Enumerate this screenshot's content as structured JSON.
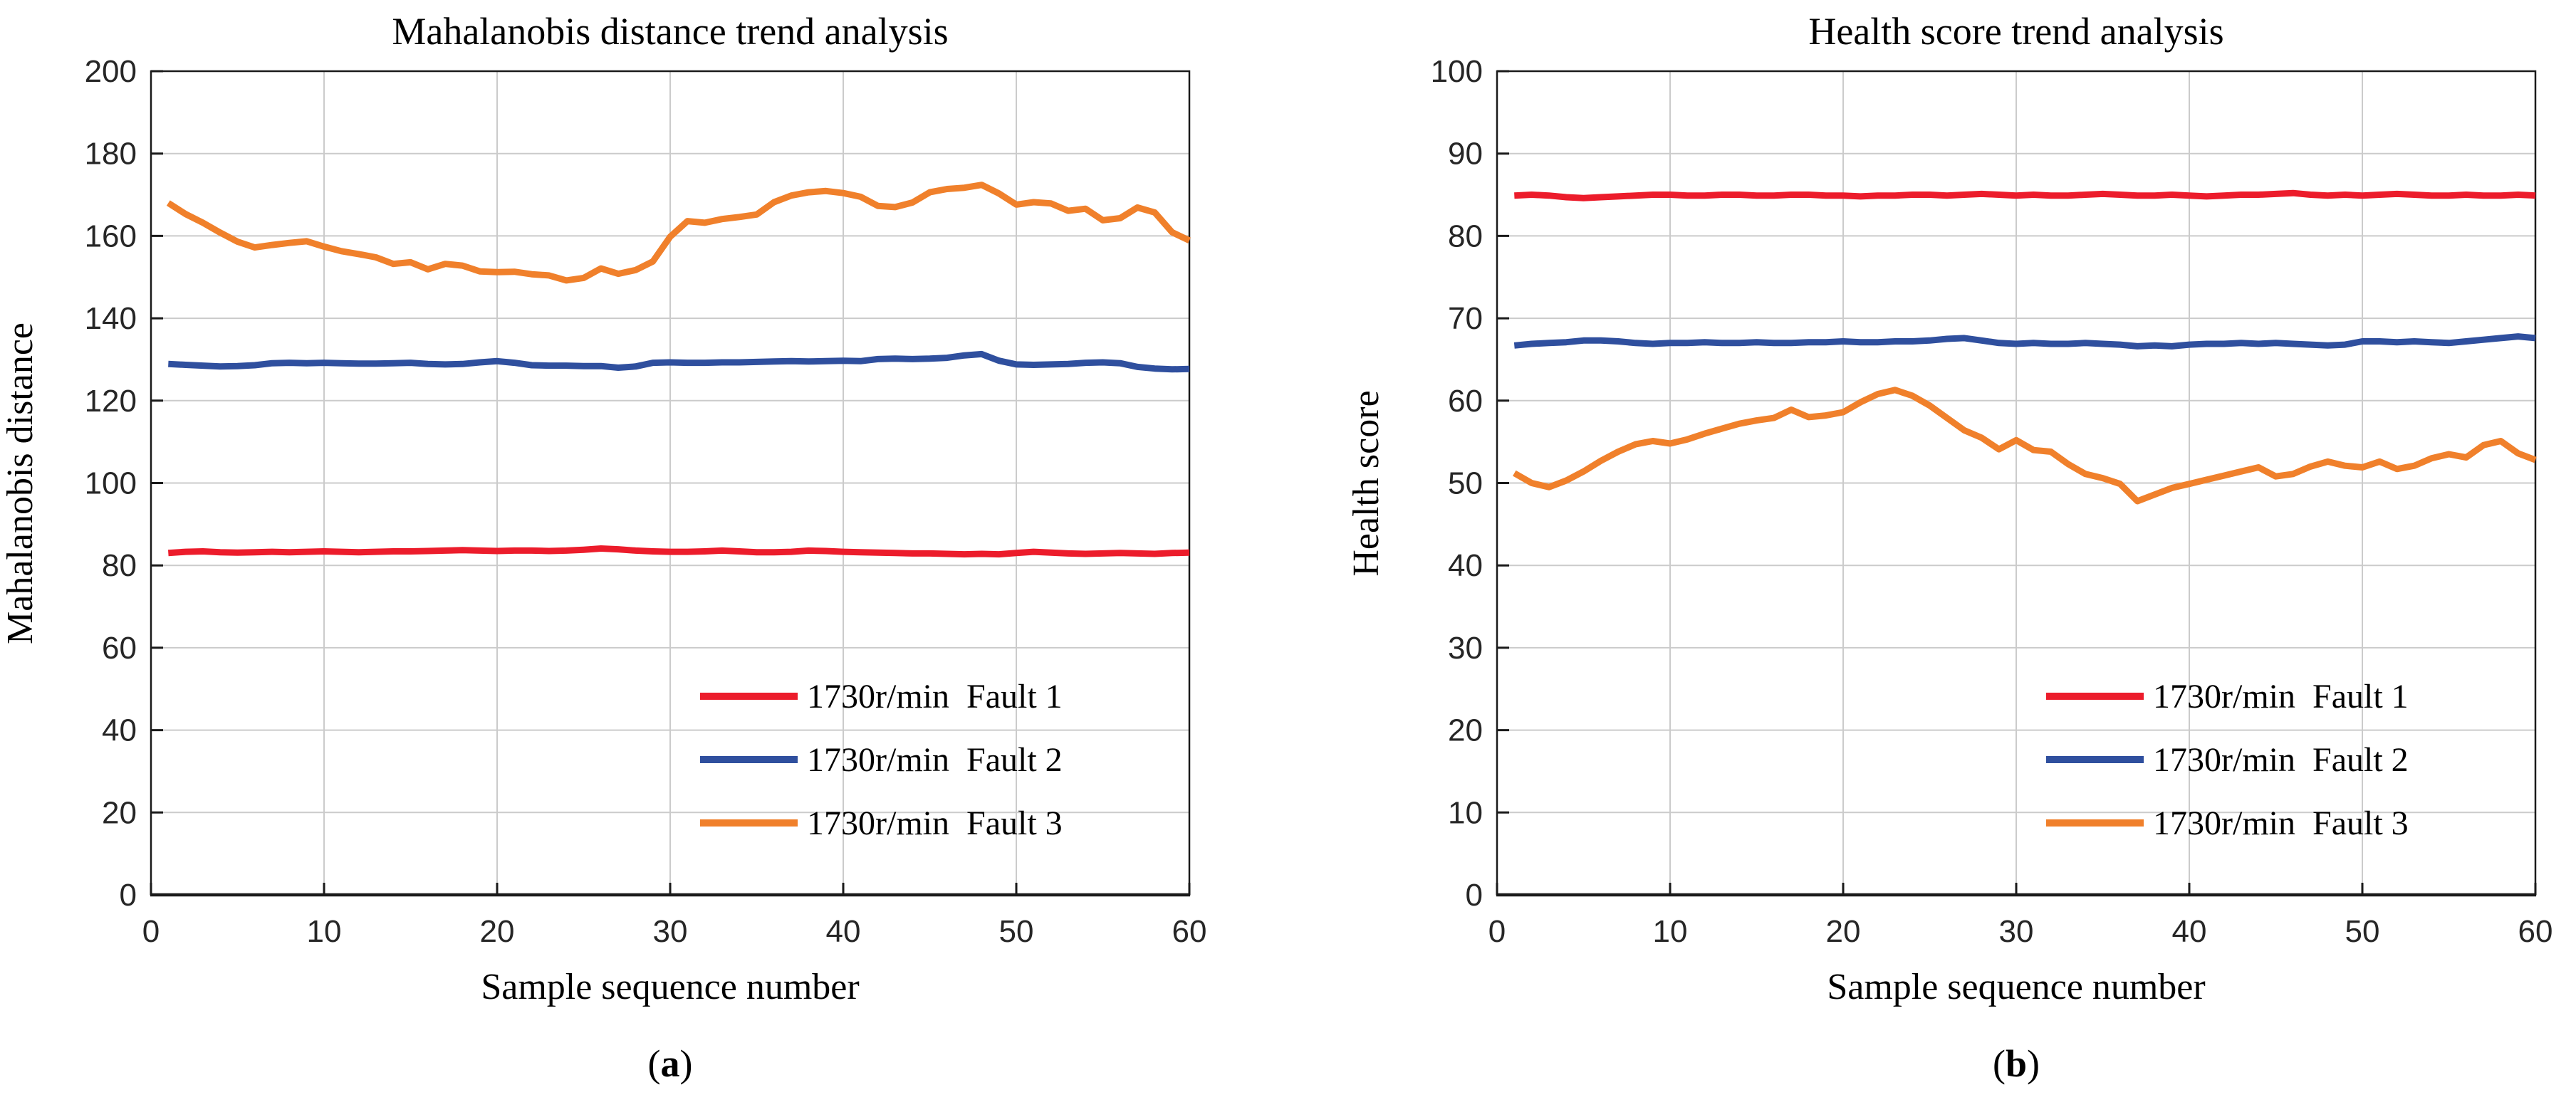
{
  "colors": {
    "background": "#FFFFFF",
    "grid": "#CBCBCB",
    "frame": "#1A1A1A",
    "tick_text": "#262626",
    "fault1_red": "#EC1C2B",
    "fault2_blue": "#2F4F9E",
    "fault3_orange": "#F0802B"
  },
  "chart_data": [
    {
      "id": "a",
      "type": "line",
      "title": "Mahalanobis distance trend analysis",
      "xlabel": "Sample sequence number",
      "ylabel": "Mahalanobis distance",
      "caption": {
        "open": "(",
        "letter": "a",
        "close": ")"
      },
      "xlim": [
        0,
        60
      ],
      "ylim": [
        0,
        200
      ],
      "xticks": [
        "0",
        "10",
        "20",
        "30",
        "40",
        "50",
        "60"
      ],
      "yticks": [
        "0",
        "20",
        "40",
        "60",
        "80",
        "100",
        "120",
        "140",
        "160",
        "180",
        "200"
      ],
      "grid": true,
      "legend_position": "lower right inside, no box",
      "x_start": 1,
      "x_step": 1,
      "series": [
        {
          "name": "1730r/min  Fault 1",
          "color": "#EC1C2B",
          "values": [
            83.0,
            83.3,
            83.4,
            83.2,
            83.1,
            83.2,
            83.3,
            83.2,
            83.3,
            83.4,
            83.3,
            83.2,
            83.3,
            83.4,
            83.4,
            83.5,
            83.6,
            83.7,
            83.6,
            83.5,
            83.6,
            83.6,
            83.5,
            83.6,
            83.8,
            84.1,
            83.9,
            83.6,
            83.4,
            83.3,
            83.3,
            83.4,
            83.6,
            83.4,
            83.2,
            83.2,
            83.3,
            83.6,
            83.5,
            83.3,
            83.2,
            83.1,
            83.0,
            82.9,
            82.9,
            82.8,
            82.7,
            82.8,
            82.7,
            83.0,
            83.3,
            83.1,
            82.9,
            82.8,
            82.9,
            83.0,
            82.9,
            82.8,
            83.0,
            83.1
          ]
        },
        {
          "name": "1730r/min  Fault 2",
          "color": "#2F4F9E",
          "values": [
            128.9,
            128.7,
            128.5,
            128.3,
            128.4,
            128.6,
            129.1,
            129.2,
            129.1,
            129.2,
            129.1,
            129.0,
            129.0,
            129.1,
            129.2,
            128.9,
            128.8,
            128.9,
            129.3,
            129.6,
            129.2,
            128.6,
            128.5,
            128.5,
            128.4,
            128.4,
            128.0,
            128.3,
            129.2,
            129.3,
            129.2,
            129.2,
            129.3,
            129.3,
            129.4,
            129.5,
            129.6,
            129.5,
            129.6,
            129.7,
            129.6,
            130.1,
            130.2,
            130.1,
            130.2,
            130.4,
            131.0,
            131.3,
            129.7,
            128.8,
            128.7,
            128.8,
            128.9,
            129.2,
            129.3,
            129.1,
            128.2,
            127.8,
            127.6,
            127.7
          ]
        },
        {
          "name": "1730r/min  Fault 3",
          "color": "#F0802B",
          "values": [
            168.0,
            165.3,
            163.2,
            160.8,
            158.6,
            157.2,
            157.8,
            158.3,
            158.7,
            157.4,
            156.3,
            155.6,
            154.8,
            153.2,
            153.6,
            151.9,
            153.2,
            152.8,
            151.4,
            151.2,
            151.3,
            150.7,
            150.4,
            149.2,
            149.8,
            152.1,
            150.8,
            151.7,
            153.8,
            159.8,
            163.6,
            163.2,
            164.1,
            164.6,
            165.2,
            168.2,
            169.8,
            170.6,
            170.9,
            170.4,
            169.5,
            167.3,
            167.0,
            168.1,
            170.6,
            171.4,
            171.7,
            172.4,
            170.3,
            167.6,
            168.2,
            167.9,
            166.1,
            166.6,
            163.8,
            164.3,
            166.9,
            165.7,
            160.9,
            158.9
          ]
        }
      ]
    },
    {
      "id": "b",
      "type": "line",
      "title": "Health score trend analysis",
      "xlabel": "Sample sequence number",
      "ylabel": "Health score",
      "caption": {
        "open": "(",
        "letter": "b",
        "close": ")"
      },
      "xlim": [
        0,
        60
      ],
      "ylim": [
        0,
        100
      ],
      "xticks": [
        "0",
        "10",
        "20",
        "30",
        "40",
        "50",
        "60"
      ],
      "yticks": [
        "0",
        "10",
        "20",
        "30",
        "40",
        "50",
        "60",
        "70",
        "80",
        "90",
        "100"
      ],
      "grid": true,
      "legend_position": "lower right inside, no box",
      "x_start": 1,
      "x_step": 1,
      "series": [
        {
          "name": "1730r/min  Fault 1",
          "color": "#EC1C2B",
          "values": [
            84.9,
            85.0,
            84.9,
            84.7,
            84.6,
            84.7,
            84.8,
            84.9,
            85.0,
            85.0,
            84.9,
            84.9,
            85.0,
            85.0,
            84.9,
            84.9,
            85.0,
            85.0,
            84.9,
            84.9,
            84.8,
            84.9,
            84.9,
            85.0,
            85.0,
            84.9,
            85.0,
            85.1,
            85.0,
            84.9,
            85.0,
            84.9,
            84.9,
            85.0,
            85.1,
            85.0,
            84.9,
            84.9,
            85.0,
            84.9,
            84.8,
            84.9,
            85.0,
            85.0,
            85.1,
            85.2,
            85.0,
            84.9,
            85.0,
            84.9,
            85.0,
            85.1,
            85.0,
            84.9,
            84.9,
            85.0,
            84.9,
            84.9,
            85.0,
            84.9
          ]
        },
        {
          "name": "1730r/min  Fault 2",
          "color": "#2F4F9E",
          "values": [
            66.7,
            66.9,
            67.0,
            67.1,
            67.3,
            67.3,
            67.2,
            67.0,
            66.9,
            67.0,
            67.0,
            67.1,
            67.0,
            67.0,
            67.1,
            67.0,
            67.0,
            67.1,
            67.1,
            67.2,
            67.1,
            67.1,
            67.2,
            67.2,
            67.3,
            67.5,
            67.6,
            67.3,
            67.0,
            66.9,
            67.0,
            66.9,
            66.9,
            67.0,
            66.9,
            66.8,
            66.6,
            66.7,
            66.6,
            66.8,
            66.9,
            66.9,
            67.0,
            66.9,
            67.0,
            66.9,
            66.8,
            66.7,
            66.8,
            67.2,
            67.2,
            67.1,
            67.2,
            67.1,
            67.0,
            67.2,
            67.4,
            67.6,
            67.8,
            67.6
          ]
        },
        {
          "name": "1730r/min  Fault 3",
          "color": "#F0802B",
          "values": [
            51.2,
            50.0,
            49.5,
            50.3,
            51.4,
            52.7,
            53.8,
            54.7,
            55.1,
            54.8,
            55.3,
            56.0,
            56.6,
            57.2,
            57.6,
            57.9,
            58.9,
            58.0,
            58.2,
            58.6,
            59.8,
            60.8,
            61.3,
            60.6,
            59.4,
            57.9,
            56.4,
            55.5,
            54.1,
            55.2,
            54.0,
            53.8,
            52.3,
            51.1,
            50.6,
            49.9,
            47.8,
            48.6,
            49.4,
            49.9,
            50.4,
            50.9,
            51.4,
            51.9,
            50.8,
            51.1,
            52.0,
            52.6,
            52.1,
            51.9,
            52.6,
            51.7,
            52.1,
            53.0,
            53.5,
            53.1,
            54.6,
            55.1,
            53.6,
            52.8
          ]
        }
      ]
    }
  ]
}
